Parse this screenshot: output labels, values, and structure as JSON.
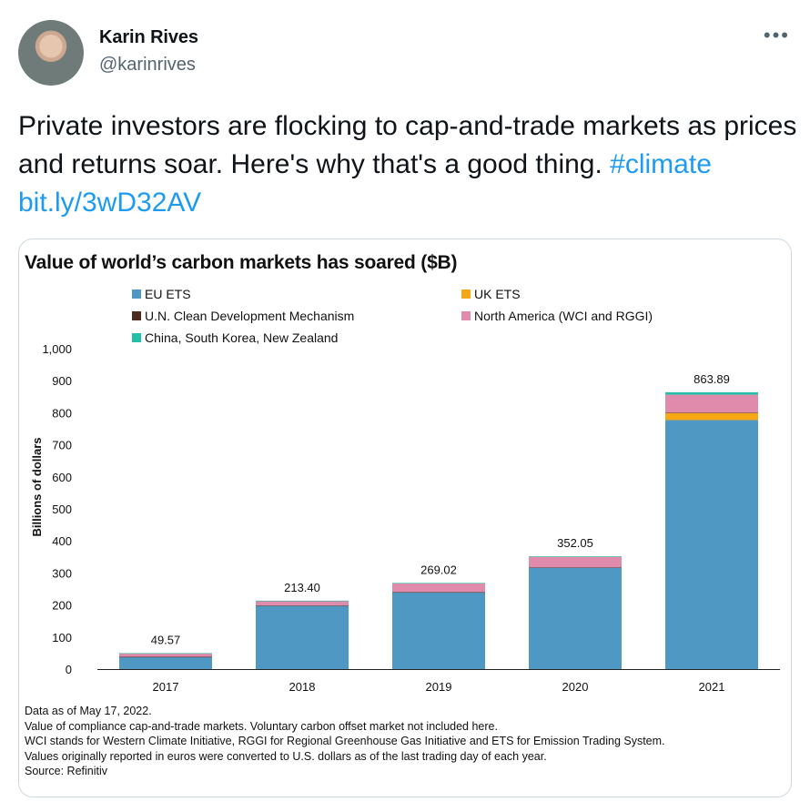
{
  "author": {
    "name": "Karin Rives",
    "handle": "@karinrives"
  },
  "tweet": {
    "text": "Private investors are flocking to cap-and-trade markets as prices and returns soar. Here's why that's a good thing.",
    "hashtag": "#climate",
    "link": "bit.ly/3wD32AV"
  },
  "chart_data": {
    "type": "bar",
    "stacked": true,
    "title": "Value of world’s carbon markets has soared ($B)",
    "ylabel": "Billions of dollars",
    "xlabel": "",
    "ylim": [
      0,
      1000
    ],
    "yticks": [
      "0",
      "100",
      "200",
      "300",
      "400",
      "500",
      "600",
      "700",
      "800",
      "900",
      "1,000"
    ],
    "categories": [
      "2017",
      "2018",
      "2019",
      "2020",
      "2021"
    ],
    "series": [
      {
        "name": "EU ETS",
        "color": "#4f98c4",
        "values": [
          38,
          198,
          240,
          317,
          777
        ]
      },
      {
        "name": "UK ETS",
        "color": "#f5a714",
        "values": [
          0,
          0,
          0,
          0,
          23
        ]
      },
      {
        "name": "U.N. Clean Development Mechanism",
        "color": "#4a2b1c",
        "values": [
          0.3,
          0.3,
          0.3,
          0.3,
          0.3
        ]
      },
      {
        "name": "North America (WCI and RGGI)",
        "color": "#e08bab",
        "values": [
          11,
          15,
          27,
          33,
          56
        ]
      },
      {
        "name": "China, South Korea, New Zealand",
        "color": "#23bfa9",
        "values": [
          0.3,
          0.1,
          1.7,
          1.8,
          7.6
        ]
      }
    ],
    "totals": [
      "49.57",
      "213.40",
      "269.02",
      "352.05",
      "863.89"
    ],
    "grid": false,
    "legend_position": "top"
  },
  "notes": [
    "Data as of May 17, 2022.",
    "Value of compliance cap-and-trade markets. Voluntary carbon offset market not included here.",
    "WCI stands for Western Climate Initiative, RGGI for Regional Greenhouse Gas Initiative and ETS for Emission Trading System.",
    "Values originally reported in euros were converted to U.S. dollars as of the last trading day of each year.",
    "Source: Refinitiv"
  ]
}
